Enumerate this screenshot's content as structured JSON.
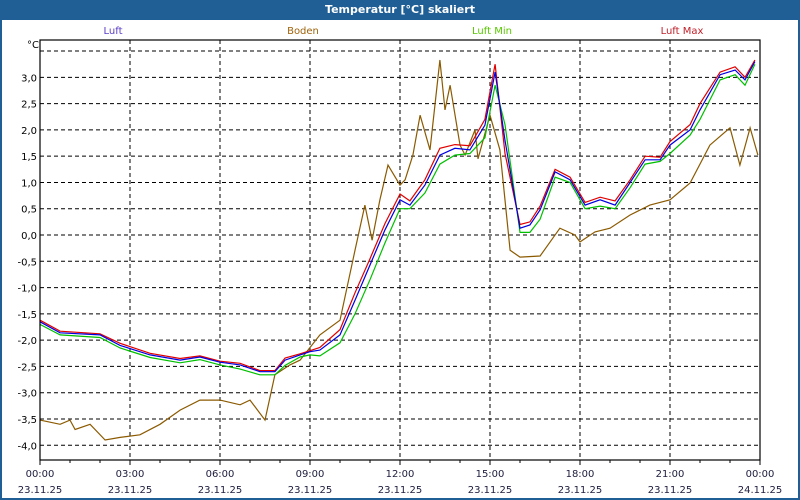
{
  "window": {
    "title": "Temperatur [°C] skaliert"
  },
  "chart_data": {
    "type": "line",
    "title": "Temperatur [°C] skaliert",
    "ylabel": "°C",
    "xlabel": "",
    "xlim": [
      0,
      24
    ],
    "ylim": [
      -4.28,
      3.71
    ],
    "grid": true,
    "legend_placement": "top",
    "yticks": [
      3.0,
      2.5,
      2.0,
      1.5,
      1.0,
      0.5,
      0.0,
      -0.5,
      -1.0,
      -1.5,
      -2.0,
      -2.5,
      -3.0,
      -3.5,
      -4.0
    ],
    "ytick_labels": [
      "3,0",
      "2,5",
      "2,0",
      "1,5",
      "1,0",
      "0,5",
      "0,0",
      "-0,5",
      "-1,0",
      "-1,5",
      "-2,0",
      "-2,5",
      "-3,0",
      "-3,5",
      "-4,0"
    ],
    "extra_gridlines": [
      3.5
    ],
    "xticks": [
      0,
      3,
      6,
      9,
      12,
      15,
      18,
      21,
      24
    ],
    "xtick_labels": [
      {
        "time": "00:00",
        "date": "23.11.25"
      },
      {
        "time": "03:00",
        "date": "23.11.25"
      },
      {
        "time": "06:00",
        "date": "23.11.25"
      },
      {
        "time": "09:00",
        "date": "23.11.25"
      },
      {
        "time": "12:00",
        "date": "23.11.25"
      },
      {
        "time": "15:00",
        "date": "23.11.25"
      },
      {
        "time": "18:00",
        "date": "23.11.25"
      },
      {
        "time": "21:00",
        "date": "23.11.25"
      },
      {
        "time": "00:00",
        "date": "24.11.25"
      }
    ],
    "series": [
      {
        "name": "Luft",
        "color": "#0000e0",
        "legend_color": "#5a3cc8",
        "x": [
          0,
          0.67,
          2,
          2.67,
          3.67,
          4.67,
          5.33,
          6,
          6.67,
          7.33,
          7.83,
          8.17,
          8.67,
          9,
          9.33,
          10,
          10.5,
          11,
          11.5,
          12,
          12.33,
          12.83,
          13.33,
          13.83,
          14.33,
          14.83,
          15.17,
          15.5,
          16,
          16.33,
          16.67,
          17.17,
          17.67,
          18.17,
          18.67,
          19.17,
          19.67,
          20.17,
          20.67,
          21,
          21.67,
          22,
          22.67,
          23.17,
          23.5,
          23.83
        ],
        "y": [
          -1.65,
          -1.86,
          -1.9,
          -2.1,
          -2.28,
          -2.38,
          -2.32,
          -2.42,
          -2.47,
          -2.6,
          -2.6,
          -2.38,
          -2.28,
          -2.22,
          -2.19,
          -1.9,
          -1.24,
          -0.57,
          0.1,
          0.67,
          0.57,
          0.95,
          1.52,
          1.65,
          1.62,
          2.09,
          3.1,
          1.8,
          0.13,
          0.19,
          0.48,
          1.2,
          1.05,
          0.57,
          0.67,
          0.57,
          1.0,
          1.43,
          1.43,
          1.71,
          2.0,
          2.38,
          3.05,
          3.14,
          2.95,
          3.3
        ]
      },
      {
        "name": "Boden",
        "color": "#8b5a00",
        "legend_color": "#a0620a",
        "x": [
          0,
          0.67,
          1,
          1.17,
          1.67,
          2.17,
          2.67,
          3.33,
          4,
          4.67,
          5.33,
          6,
          6.67,
          7,
          7.5,
          7.83,
          8.33,
          8.67,
          9.33,
          10,
          10.5,
          10.83,
          11.07,
          11.33,
          11.6,
          12,
          12.17,
          12.43,
          12.67,
          13,
          13.33,
          13.5,
          13.67,
          14,
          14.17,
          14.5,
          14.6,
          15,
          15.33,
          15.67,
          16,
          16.67,
          17.33,
          17.83,
          18,
          18.5,
          19,
          19.67,
          20.33,
          21,
          21.67,
          22.33,
          23,
          23.33,
          23.67,
          23.93
        ],
        "y": [
          -3.52,
          -3.6,
          -3.52,
          -3.7,
          -3.6,
          -3.9,
          -3.85,
          -3.8,
          -3.6,
          -3.33,
          -3.14,
          -3.14,
          -3.23,
          -3.14,
          -3.52,
          -2.66,
          -2.47,
          -2.38,
          -1.9,
          -1.62,
          -0.29,
          0.57,
          -0.1,
          0.67,
          1.33,
          0.95,
          1.05,
          1.52,
          2.28,
          1.62,
          3.33,
          2.38,
          2.85,
          1.71,
          1.52,
          2.0,
          1.45,
          2.28,
          1.62,
          -0.29,
          -0.42,
          -0.4,
          0.13,
          0.0,
          -0.13,
          0.06,
          0.13,
          0.38,
          0.57,
          0.67,
          0.99,
          1.71,
          2.04,
          1.33,
          2.04,
          1.52
        ]
      },
      {
        "name": "Luft Min",
        "color": "#00c000",
        "legend_color": "#5ac800",
        "x": [
          0,
          0.67,
          2,
          2.67,
          3.67,
          4.67,
          5.33,
          6,
          6.67,
          7.33,
          7.83,
          8.17,
          8.67,
          9,
          9.33,
          10,
          10.5,
          11,
          11.5,
          12,
          12.33,
          12.83,
          13.33,
          13.83,
          14.33,
          14.83,
          15.17,
          15.5,
          16,
          16.33,
          16.67,
          17.17,
          17.67,
          18.17,
          18.67,
          19.17,
          19.67,
          20.17,
          20.67,
          21,
          21.67,
          22,
          22.67,
          23.17,
          23.5,
          23.83
        ],
        "y": [
          -1.7,
          -1.9,
          -1.95,
          -2.15,
          -2.33,
          -2.43,
          -2.37,
          -2.47,
          -2.55,
          -2.66,
          -2.66,
          -2.48,
          -2.32,
          -2.28,
          -2.3,
          -2.05,
          -1.5,
          -0.85,
          -0.15,
          0.5,
          0.5,
          0.8,
          1.35,
          1.52,
          1.55,
          1.85,
          2.85,
          2.1,
          0.05,
          0.05,
          0.3,
          1.1,
          1.0,
          0.5,
          0.55,
          0.5,
          0.9,
          1.35,
          1.4,
          1.55,
          1.9,
          2.2,
          2.95,
          3.05,
          2.85,
          3.25
        ]
      },
      {
        "name": "Luft Max",
        "color": "#e00000",
        "legend_color": "#c0202a",
        "x": [
          0,
          0.67,
          2,
          2.67,
          3.67,
          4.67,
          5.33,
          6,
          6.67,
          7.33,
          7.83,
          8.17,
          8.67,
          9,
          9.33,
          10,
          10.5,
          11,
          11.5,
          12,
          12.33,
          12.83,
          13.33,
          13.83,
          14.33,
          14.83,
          15.17,
          15.5,
          16,
          16.33,
          16.67,
          17.17,
          17.67,
          18.17,
          18.67,
          19.17,
          19.67,
          20.17,
          20.67,
          21,
          21.67,
          22,
          22.67,
          23.17,
          23.5,
          23.83
        ],
        "y": [
          -1.62,
          -1.83,
          -1.88,
          -2.06,
          -2.25,
          -2.35,
          -2.3,
          -2.4,
          -2.44,
          -2.58,
          -2.58,
          -2.34,
          -2.26,
          -2.2,
          -2.14,
          -1.8,
          -1.1,
          -0.45,
          0.22,
          0.78,
          0.65,
          1.05,
          1.65,
          1.72,
          1.7,
          2.2,
          3.25,
          1.55,
          0.2,
          0.25,
          0.55,
          1.25,
          1.1,
          0.62,
          0.72,
          0.65,
          1.05,
          1.5,
          1.48,
          1.78,
          2.1,
          2.5,
          3.1,
          3.2,
          3.0,
          3.33
        ]
      }
    ]
  }
}
